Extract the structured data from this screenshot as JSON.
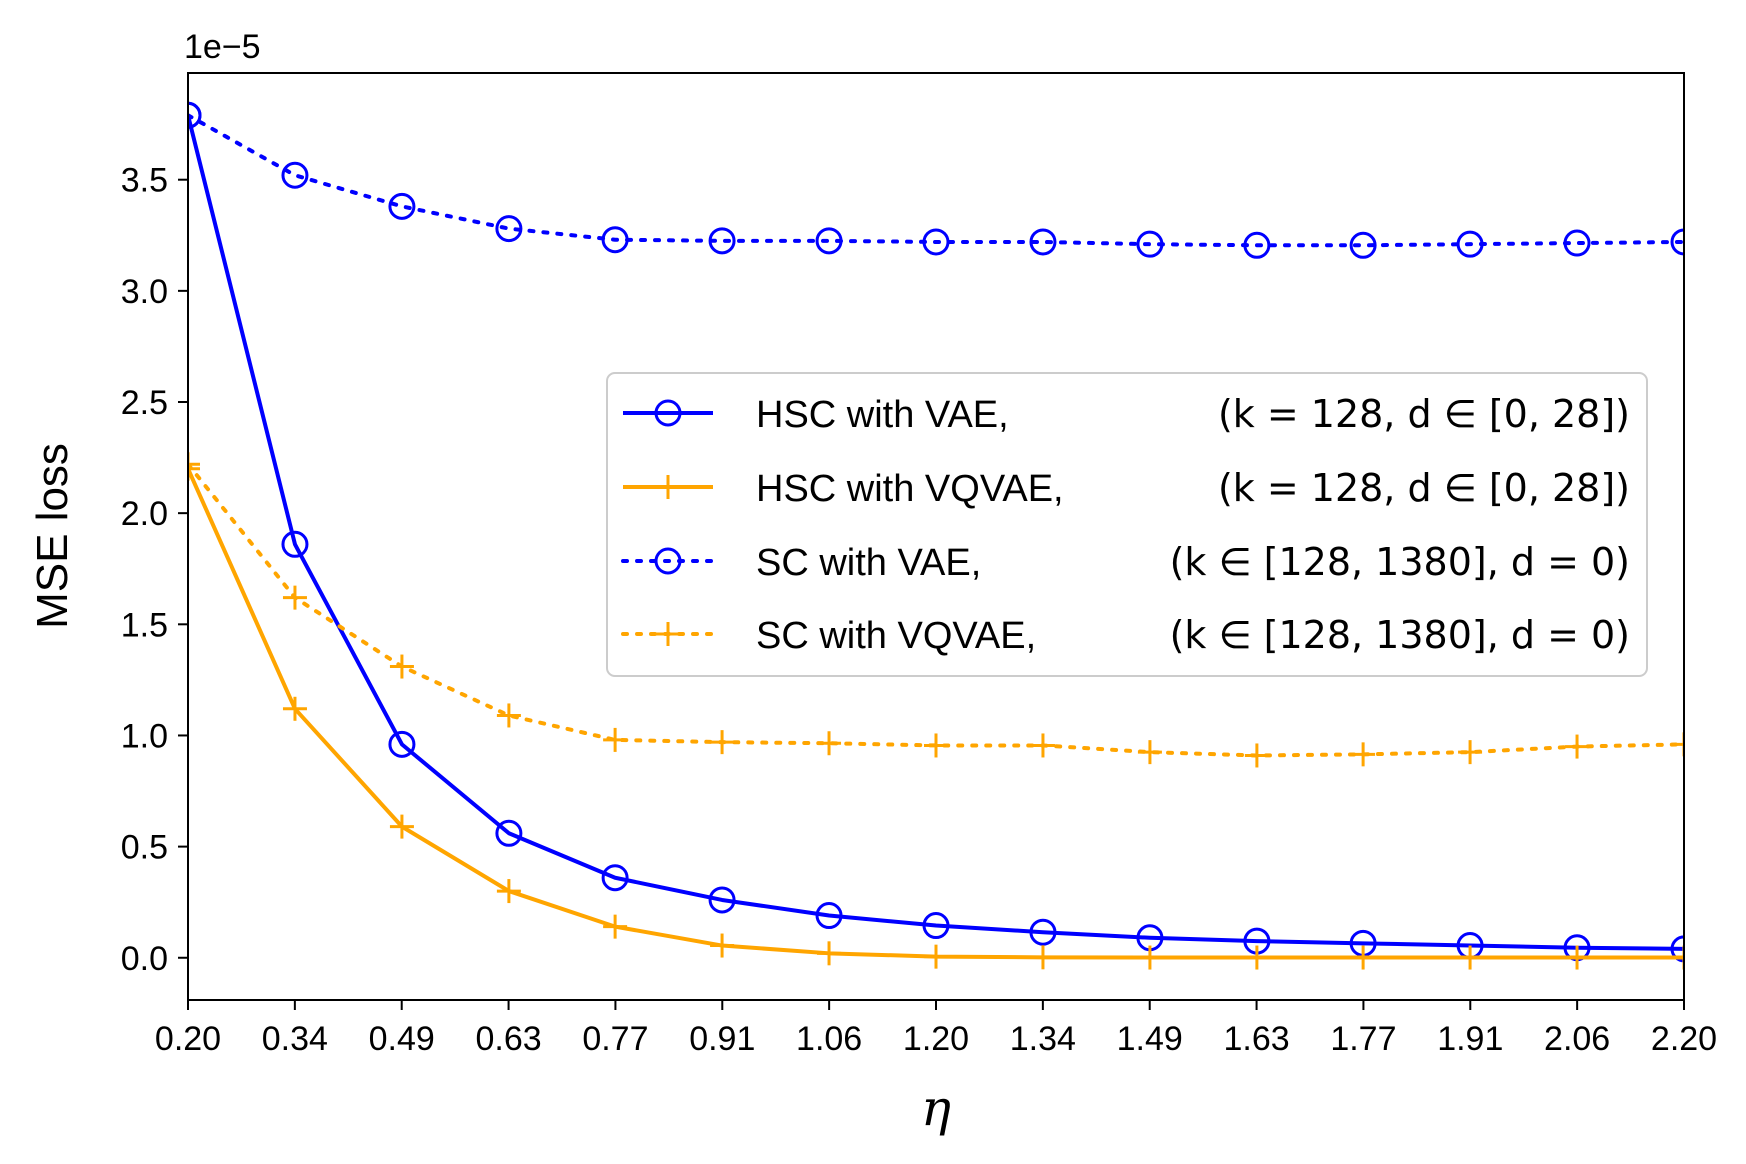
{
  "chart_data": {
    "type": "line",
    "title": "",
    "xlabel": "η",
    "ylabel": "MSE loss",
    "y_scale_label": "1e−5",
    "y_scale": 1e-05,
    "xlim": [
      0.2,
      2.2
    ],
    "ylim": [
      -0.19,
      3.98
    ],
    "x_ticks": [
      "0.20",
      "0.34",
      "0.49",
      "0.63",
      "0.77",
      "0.91",
      "1.06",
      "1.20",
      "1.34",
      "1.49",
      "1.63",
      "1.77",
      "1.91",
      "2.06",
      "2.20"
    ],
    "y_ticks": [
      "0.0",
      "0.5",
      "1.0",
      "1.5",
      "2.0",
      "2.5",
      "3.0",
      "3.5"
    ],
    "x": [
      0.2,
      0.343,
      0.486,
      0.629,
      0.771,
      0.914,
      1.057,
      1.2,
      1.343,
      1.486,
      1.629,
      1.771,
      1.914,
      2.057,
      2.2
    ],
    "legend_position": "center-right",
    "series": [
      {
        "name": "HSC with VAE,",
        "params": "(k = 128, d ∈ [0, 28])",
        "color": "#0000ff",
        "linestyle": "solid",
        "marker": "circle",
        "values": [
          3.79,
          1.86,
          0.96,
          0.56,
          0.36,
          0.26,
          0.19,
          0.145,
          0.115,
          0.09,
          0.075,
          0.065,
          0.055,
          0.045,
          0.04
        ]
      },
      {
        "name": "HSC with VQVAE,",
        "params": "(k = 128, d ∈ [0, 28])",
        "color": "#ffa500",
        "linestyle": "solid",
        "marker": "plus",
        "values": [
          2.2,
          1.12,
          0.59,
          0.3,
          0.14,
          0.055,
          0.02,
          0.005,
          0.002,
          0.001,
          0.001,
          0.001,
          0.001,
          0.001,
          0.001
        ]
      },
      {
        "name": "SC with VAE,",
        "params": "(k ∈ [128, 1380], d = 0)",
        "color": "#0000ff",
        "linestyle": "dotted",
        "marker": "circle",
        "values": [
          3.79,
          3.52,
          3.38,
          3.28,
          3.23,
          3.225,
          3.225,
          3.22,
          3.22,
          3.21,
          3.205,
          3.205,
          3.21,
          3.215,
          3.22
        ]
      },
      {
        "name": "SC with VQVAE,",
        "params": "(k ∈ [128, 1380], d = 0)",
        "color": "#ffa500",
        "linestyle": "dotted",
        "marker": "plus",
        "values": [
          2.22,
          1.62,
          1.31,
          1.09,
          0.98,
          0.97,
          0.965,
          0.955,
          0.955,
          0.925,
          0.91,
          0.915,
          0.925,
          0.95,
          0.96
        ]
      }
    ]
  }
}
